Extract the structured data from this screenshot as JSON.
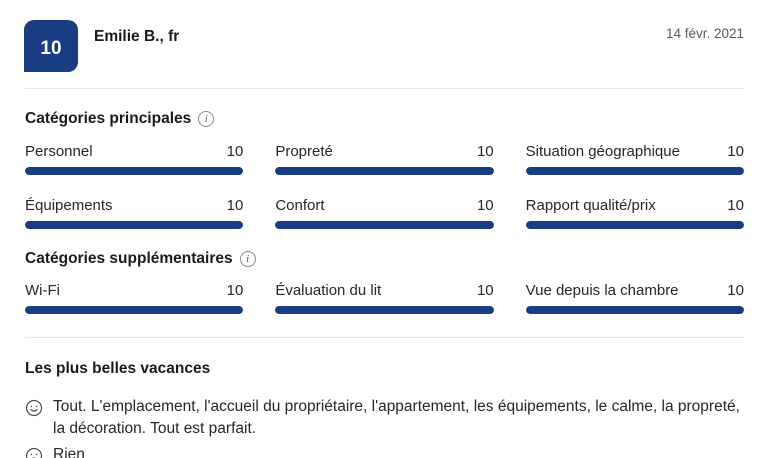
{
  "header": {
    "score": "10",
    "reviewer": "Emilie B., fr",
    "date": "14 févr. 2021"
  },
  "colors": {
    "accent": "#1a3c82",
    "divider": "#e7e7e7",
    "muted_text": "#595959"
  },
  "icons": {
    "info": "info-icon",
    "positive": "happy-face-icon",
    "negative": "sad-face-icon"
  },
  "sections": [
    {
      "title": "Catégories principales",
      "items": [
        {
          "label": "Personnel",
          "score": "10",
          "pct": 100
        },
        {
          "label": "Propreté",
          "score": "10",
          "pct": 100
        },
        {
          "label": "Situation géographique",
          "score": "10",
          "pct": 100
        },
        {
          "label": "Équipements",
          "score": "10",
          "pct": 100
        },
        {
          "label": "Confort",
          "score": "10",
          "pct": 100
        },
        {
          "label": "Rapport qualité/prix",
          "score": "10",
          "pct": 100
        }
      ]
    },
    {
      "title": "Catégories supplémentaires",
      "items": [
        {
          "label": "Wi-Fi",
          "score": "10",
          "pct": 100
        },
        {
          "label": "Évaluation du lit",
          "score": "10",
          "pct": 100
        },
        {
          "label": "Vue depuis la chambre",
          "score": "10",
          "pct": 100
        }
      ]
    }
  ],
  "review": {
    "title": "Les plus belles vacances",
    "positive": "Tout. L'emplacement, l'accueil du propriétaire, l'appartement, les équipements, le calme, la propreté, la décoration. Tout est parfait.",
    "negative": "Rien"
  }
}
